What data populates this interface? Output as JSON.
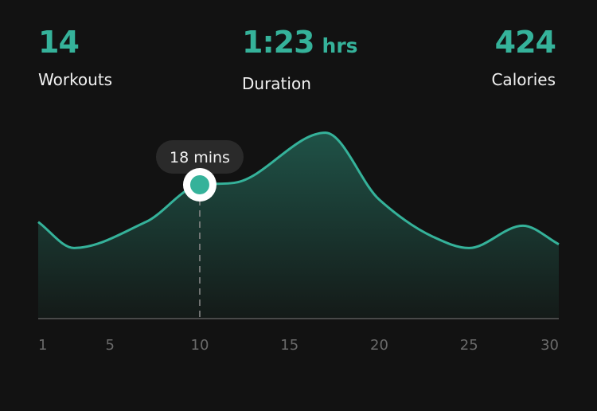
{
  "stats": {
    "workouts": {
      "value": "14",
      "label": "Workouts"
    },
    "duration": {
      "value": "1:23",
      "unit": "hrs",
      "label": "Duration"
    },
    "calories": {
      "value": "424",
      "label": "Calories"
    }
  },
  "colors": {
    "background": "#121212",
    "accent": "#35b29a",
    "fill_top": "#1f5247",
    "fill_bottom": "#141a18",
    "tooltip_bg": "#2a2a2a",
    "axis": "#5a5a5a",
    "tick_text": "#6a6a6a"
  },
  "tooltip": {
    "text": "18 mins",
    "day": 10
  },
  "chart_data": {
    "type": "area",
    "title": "",
    "xlabel": "",
    "ylabel": "",
    "x_ticks": [
      1,
      5,
      10,
      15,
      20,
      25,
      30
    ],
    "xlim": [
      1,
      30
    ],
    "ylim": [
      0,
      30
    ],
    "grid": false,
    "series": [
      {
        "x": [
          1,
          3,
          7,
          10,
          12,
          17,
          20,
          23,
          25,
          28,
          30
        ],
        "values": [
          13,
          9.5,
          13,
          18,
          18.3,
          25,
          16,
          11,
          9.5,
          12.5,
          10
        ]
      }
    ]
  }
}
